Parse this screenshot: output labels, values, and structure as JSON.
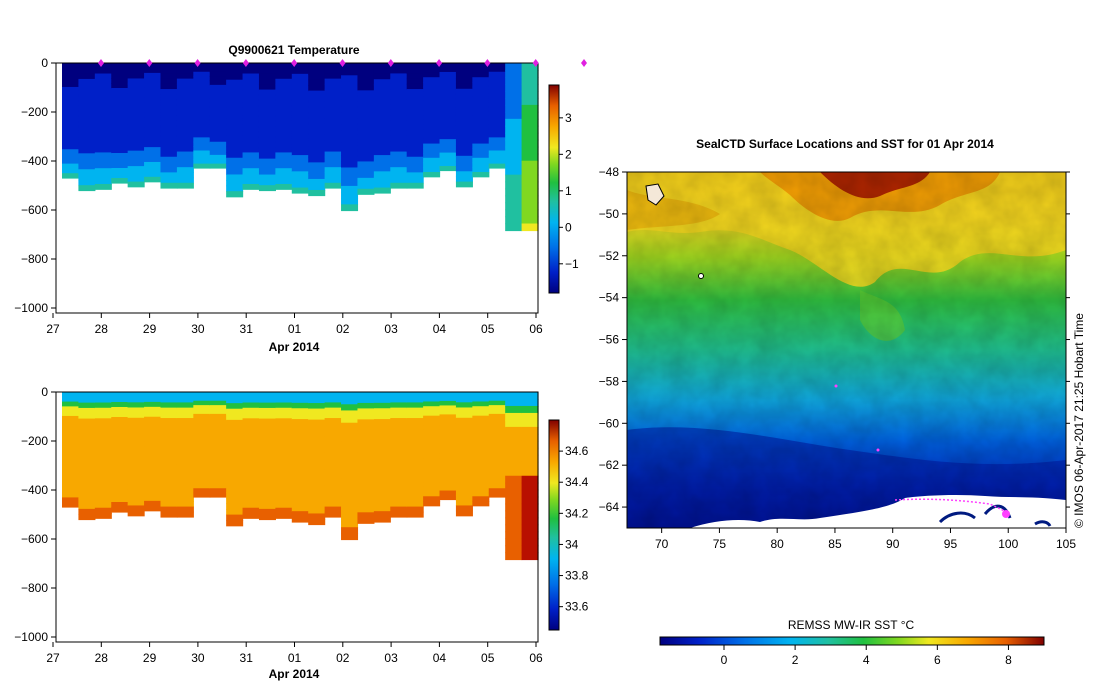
{
  "chart_data": [
    {
      "type": "heatmap",
      "title": "Q9900621  Temperature",
      "xlabel": "Apr 2014",
      "ylabel": "",
      "x_ticks": [
        "27",
        "28",
        "29",
        "30",
        "31",
        "01",
        "02",
        "03",
        "04",
        "05",
        "06"
      ],
      "y_ticks": [
        "0",
        "−200",
        "−400",
        "−600",
        "−800",
        "−1000"
      ],
      "ylim": [
        -1000,
        0
      ],
      "colorbar_ticks": [
        "3",
        "2",
        "1",
        "0",
        "−1"
      ],
      "colorbar_range": [
        -1.8,
        3.9
      ],
      "profile_depths": [
        460,
        510,
        505,
        480,
        495,
        475,
        500,
        500,
        420,
        420,
        535,
        505,
        510,
        505,
        520,
        530,
        500,
        590,
        525,
        520,
        500,
        500,
        455,
        430,
        495,
        455,
        420,
        670,
        670
      ],
      "surface_markers": [
        28,
        29,
        30,
        31,
        32,
        33,
        34,
        35,
        36,
        37,
        38
      ]
    },
    {
      "type": "heatmap",
      "title": "",
      "xlabel": "Apr 2014",
      "x_ticks": [
        "27",
        "28",
        "29",
        "30",
        "31",
        "01",
        "02",
        "03",
        "04",
        "05",
        "06"
      ],
      "y_ticks": [
        "0",
        "−200",
        "−400",
        "−600",
        "−800",
        "−1000"
      ],
      "ylim": [
        -1000,
        0
      ],
      "colorbar_ticks": [
        "34.6",
        "34.4",
        "34.2",
        "34",
        "33.8",
        "33.6"
      ],
      "colorbar_range": [
        33.45,
        34.8
      ]
    },
    {
      "type": "heatmap",
      "title": "SealCTD Surface Locations and SST for 01 Apr 2014",
      "xlabel": "",
      "x_ticks": [
        "70",
        "75",
        "80",
        "85",
        "90",
        "95",
        "100",
        "105"
      ],
      "y_ticks": [
        "−48",
        "−50",
        "−52",
        "−54",
        "−56",
        "−58",
        "−60",
        "−62",
        "−64"
      ],
      "xlim": [
        67,
        105
      ],
      "ylim": [
        -65,
        -48
      ],
      "colorbar_label": "REMSS MW-IR SST °C",
      "colorbar_ticks": [
        "0",
        "2",
        "4",
        "6",
        "8"
      ],
      "colorbar_range": [
        -1.8,
        9.0
      ],
      "credit": "© IMOS 06-Apr-2017 21:25 Hobart Time"
    }
  ],
  "colors": {
    "ramp": [
      "#00007f",
      "#0020c8",
      "#0070e8",
      "#00b4f0",
      "#20c0a0",
      "#20c040",
      "#80d820",
      "#f0e820",
      "#f8a800",
      "#e86000",
      "#b81000",
      "#800000"
    ]
  }
}
